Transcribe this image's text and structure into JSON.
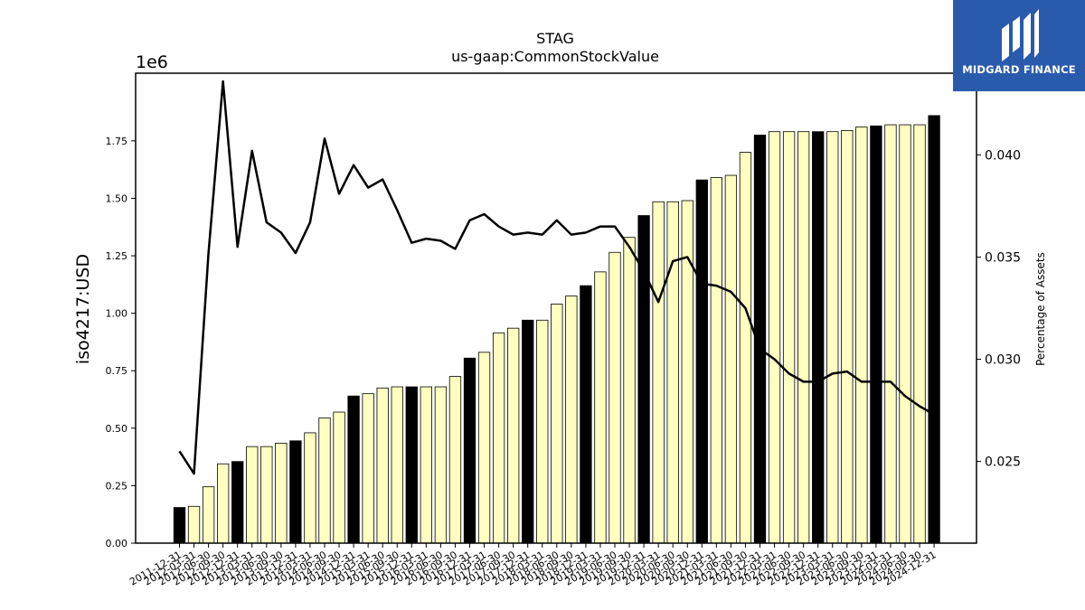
{
  "chart_data": {
    "type": "bar",
    "title": "STAG",
    "subtitle": "us-gaap:CommonStockValue",
    "ylabel": "iso4217:USD",
    "y_offset_label": "1e6",
    "y2label": "Percentage of Assets",
    "ylim": [
      0,
      1950000
    ],
    "y2lim": [
      0.021,
      0.044
    ],
    "yticks": [
      "0.00",
      "0.25",
      "0.50",
      "0.75",
      "1.00",
      "1.25",
      "1.50",
      "1.75"
    ],
    "y2ticks": [
      "0.025",
      "0.030",
      "0.035",
      "0.040"
    ],
    "grid": false,
    "colors": {
      "bar_fill": "#ffffc0",
      "bar_highlight": "#000000",
      "line": "#000000"
    },
    "categories": [
      "2011-12-31",
      "2012-03-31",
      "2012-06-30",
      "2012-09-30",
      "2012-12-31",
      "2013-03-31",
      "2013-06-30",
      "2013-09-30",
      "2013-12-31",
      "2014-03-31",
      "2014-06-30",
      "2014-09-30",
      "2014-12-31",
      "2015-03-31",
      "2015-06-30",
      "2015-09-30",
      "2015-12-31",
      "2016-03-31",
      "2016-06-30",
      "2016-09-30",
      "2016-12-31",
      "2017-03-31",
      "2017-06-30",
      "2017-09-30",
      "2017-12-31",
      "2018-03-31",
      "2018-06-30",
      "2018-09-30",
      "2018-12-31",
      "2019-03-31",
      "2019-06-30",
      "2019-09-30",
      "2019-12-31",
      "2020-03-31",
      "2020-06-30",
      "2020-09-30",
      "2020-12-31",
      "2021-03-31",
      "2021-06-30",
      "2021-09-30",
      "2021-12-31",
      "2022-03-31",
      "2022-06-30",
      "2022-09-30",
      "2022-12-31",
      "2023-03-31",
      "2023-06-30",
      "2023-09-30",
      "2023-12-31",
      "2024-03-31",
      "2024-06-30",
      "2024-09-30",
      "2024-12-31"
    ],
    "series": [
      {
        "type": "bar",
        "values": [
          155000,
          160000,
          245000,
          345000,
          355000,
          420000,
          420000,
          435000,
          445000,
          480000,
          545000,
          570000,
          640000,
          650000,
          675000,
          680000,
          680000,
          680000,
          680000,
          725000,
          805000,
          830000,
          915000,
          935000,
          970000,
          970000,
          1040000,
          1075000,
          1120000,
          1180000,
          1265000,
          1330000,
          1425000,
          1485000,
          1485000,
          1490000,
          1580000,
          1590000,
          1600000,
          1700000,
          1775000,
          1790000,
          1790000,
          1790000,
          1790000,
          1790000,
          1795000,
          1810000,
          1815000,
          1820000,
          1820000,
          1820000,
          1860000
        ],
        "highlight": [
          true,
          false,
          false,
          false,
          true,
          false,
          false,
          false,
          true,
          false,
          false,
          false,
          true,
          false,
          false,
          false,
          true,
          false,
          false,
          false,
          true,
          false,
          false,
          false,
          true,
          false,
          false,
          false,
          true,
          false,
          false,
          false,
          true,
          false,
          false,
          false,
          true,
          false,
          false,
          false,
          true,
          false,
          false,
          false,
          true,
          false,
          false,
          false,
          true,
          false,
          false,
          false,
          true
        ]
      },
      {
        "type": "line",
        "axis": "right",
        "values": [
          0.0255,
          0.0244,
          0.0352,
          0.0436,
          0.0355,
          0.0402,
          0.0367,
          0.0362,
          0.0352,
          0.0367,
          0.0408,
          0.0381,
          0.0395,
          0.0384,
          0.0388,
          0.0373,
          0.0357,
          0.0359,
          0.0358,
          0.0354,
          0.0368,
          0.0371,
          0.0365,
          0.0361,
          0.0362,
          0.0361,
          0.0368,
          0.0361,
          0.0362,
          0.0365,
          0.0365,
          0.0355,
          0.0343,
          0.0328,
          0.0348,
          0.035,
          0.0337,
          0.0336,
          0.0333,
          0.0325,
          0.0305,
          0.03,
          0.0293,
          0.0289,
          0.0289,
          0.0293,
          0.0294,
          0.0289,
          0.0289,
          0.0289,
          0.0282,
          0.0277,
          0.0273
        ]
      }
    ]
  },
  "logo": {
    "text": "MIDGARD FINANCE",
    "icon": "midgard-logo-icon"
  }
}
